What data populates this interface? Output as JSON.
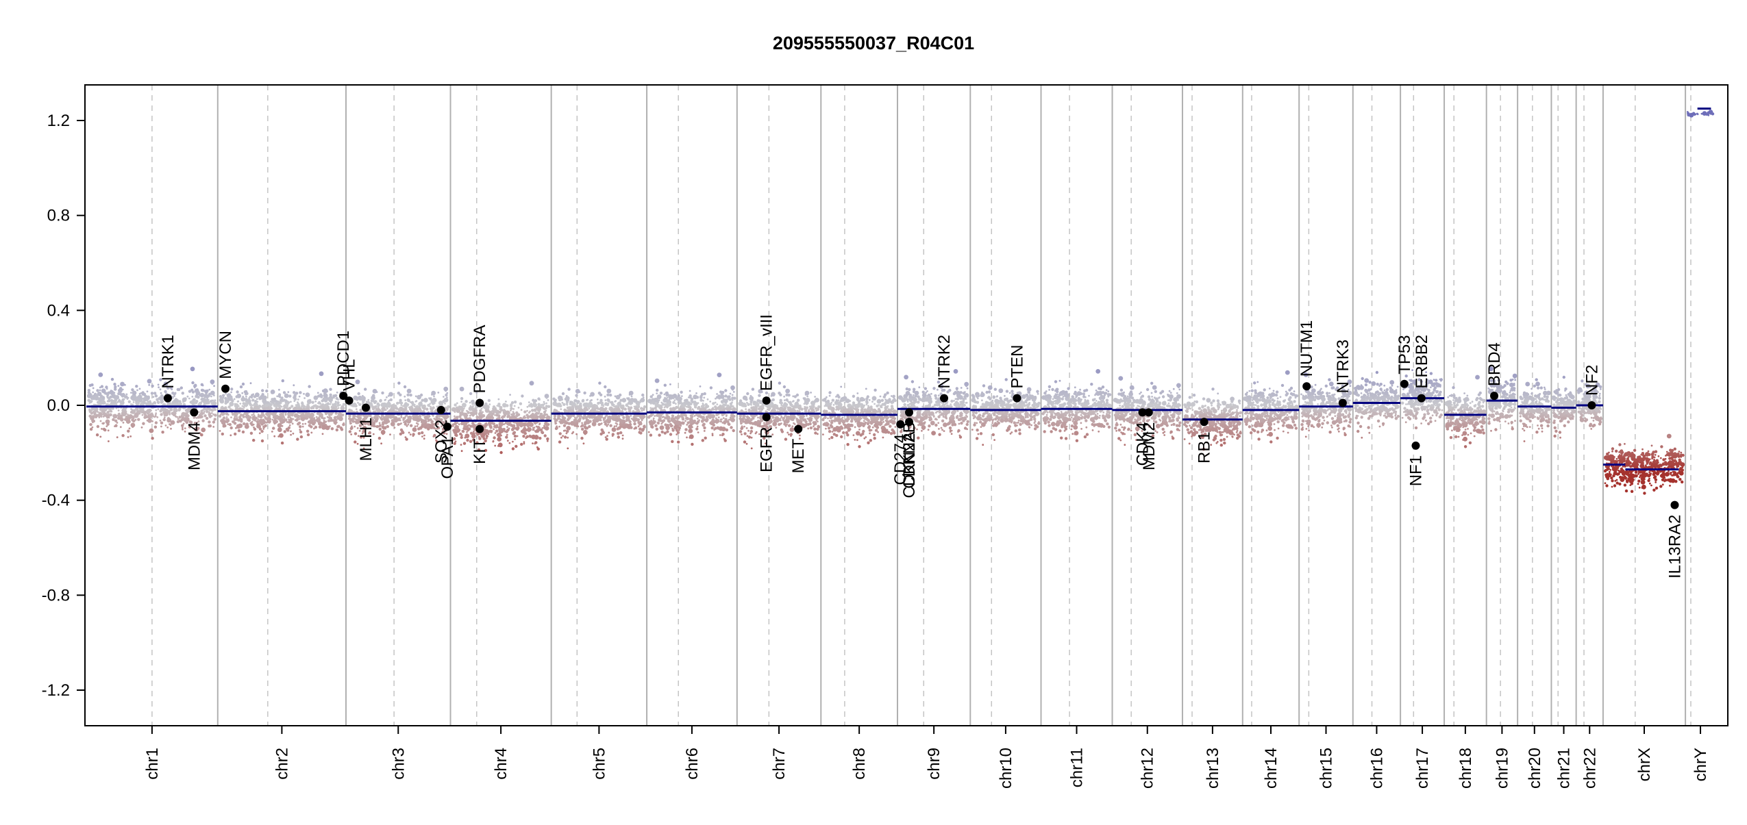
{
  "chart_data": {
    "type": "scatter",
    "title": "209555550037_R04C01",
    "ylim": [
      -1.35,
      1.35
    ],
    "yticks": [
      1.2,
      0.8,
      0.4,
      0.0,
      -0.4,
      -0.8,
      -1.2
    ],
    "ytick_labels": [
      "1.2",
      "0.8",
      "0.4",
      "0.0",
      "-0.4",
      "-0.8",
      "-1.2"
    ],
    "grid": false,
    "colors": {
      "segment": "#000080",
      "gain": "#7b7bbf",
      "loss": "#a52a2a",
      "neutral": "#c8c8c8"
    },
    "chromosomes": [
      {
        "name": "chr1",
        "size": 249,
        "centromere": 0.5,
        "level": -0.005
      },
      {
        "name": "chr2",
        "size": 243,
        "centromere": 0.39,
        "level": -0.025
      },
      {
        "name": "chr3",
        "size": 198,
        "centromere": 0.46,
        "level": -0.035
      },
      {
        "name": "chr4",
        "size": 191,
        "centromere": 0.26,
        "level": -0.065
      },
      {
        "name": "chr5",
        "size": 181,
        "centromere": 0.27,
        "level": -0.035
      },
      {
        "name": "chr6",
        "size": 171,
        "centromere": 0.35,
        "level": -0.03
      },
      {
        "name": "chr7",
        "size": 159,
        "centromere": 0.38,
        "level": -0.035
      },
      {
        "name": "chr8",
        "size": 145,
        "centromere": 0.31,
        "level": -0.04
      },
      {
        "name": "chr9",
        "size": 138,
        "centromere": 0.36,
        "level": -0.015
      },
      {
        "name": "chr10",
        "size": 134,
        "centromere": 0.3,
        "level": -0.02
      },
      {
        "name": "chr11",
        "size": 135,
        "centromere": 0.4,
        "level": -0.015
      },
      {
        "name": "chr12",
        "size": 133,
        "centromere": 0.27,
        "level": -0.02
      },
      {
        "name": "chr13",
        "size": 114,
        "centromere": 0.16,
        "level": -0.06
      },
      {
        "name": "chr14",
        "size": 107,
        "centromere": 0.16,
        "level": -0.02
      },
      {
        "name": "chr15",
        "size": 102,
        "centromere": 0.18,
        "level": -0.005
      },
      {
        "name": "chr16",
        "size": 90,
        "centromere": 0.4,
        "level": 0.01
      },
      {
        "name": "chr17",
        "size": 83,
        "centromere": 0.3,
        "level": 0.03
      },
      {
        "name": "chr18",
        "size": 80,
        "centromere": 0.23,
        "level": -0.04
      },
      {
        "name": "chr19",
        "size": 59,
        "centromere": 0.45,
        "level": 0.02
      },
      {
        "name": "chr20",
        "size": 64,
        "centromere": 0.44,
        "level": -0.005
      },
      {
        "name": "chr21",
        "size": 47,
        "centromere": 0.27,
        "level": -0.01
      },
      {
        "name": "chr22",
        "size": 51,
        "centromere": 0.29,
        "level": 0.0
      },
      {
        "name": "chrX",
        "size": 156,
        "centromere": 0.39,
        "level": -0.26
      },
      {
        "name": "chrY",
        "size": 57,
        "centromere": 0.18,
        "level": 1.23
      }
    ],
    "extra_segments": [
      {
        "chrom": "chrX",
        "start": 0.0,
        "end": 0.27,
        "level": -0.25
      },
      {
        "chrom": "chrX",
        "start": 0.27,
        "end": 0.92,
        "level": -0.27
      },
      {
        "chrom": "chrY",
        "start": 0.4,
        "end": 0.85,
        "level": 1.25
      }
    ],
    "genes": [
      {
        "name": "NTRK1",
        "chrom": "chr1",
        "pos": 0.62,
        "value": 0.03,
        "label_side": "above"
      },
      {
        "name": "MDM4",
        "chrom": "chr1",
        "pos": 0.82,
        "value": -0.03,
        "label_side": "below"
      },
      {
        "name": "MYCN",
        "chrom": "chr2",
        "pos": 0.06,
        "value": 0.07,
        "label_side": "above"
      },
      {
        "name": "PDCD1",
        "chrom": "chr2",
        "pos": 0.98,
        "value": 0.04,
        "label_side": "above"
      },
      {
        "name": "VHL",
        "chrom": "chr3",
        "pos": 0.03,
        "value": 0.02,
        "label_side": "above"
      },
      {
        "name": "MLH1",
        "chrom": "chr3",
        "pos": 0.19,
        "value": -0.01,
        "label_side": "below"
      },
      {
        "name": "SOX2",
        "chrom": "chr3",
        "pos": 0.91,
        "value": -0.02,
        "label_side": "below"
      },
      {
        "name": "OPA1",
        "chrom": "chr3",
        "pos": 0.97,
        "value": -0.09,
        "label_side": "below"
      },
      {
        "name": "PDGFRA",
        "chrom": "chr4",
        "pos": 0.29,
        "value": 0.01,
        "label_side": "above"
      },
      {
        "name": "KIT",
        "chrom": "chr4",
        "pos": 0.29,
        "value": -0.1,
        "label_side": "below"
      },
      {
        "name": "EGFR_vIII",
        "chrom": "chr7",
        "pos": 0.35,
        "value": 0.02,
        "label_side": "above"
      },
      {
        "name": "EGFR",
        "chrom": "chr7",
        "pos": 0.35,
        "value": -0.05,
        "label_side": "below"
      },
      {
        "name": "MET",
        "chrom": "chr7",
        "pos": 0.73,
        "value": -0.1,
        "label_side": "below"
      },
      {
        "name": "CD274",
        "chrom": "chr9",
        "pos": 0.04,
        "value": -0.08,
        "label_side": "below"
      },
      {
        "name": "CDKN2A",
        "chrom": "chr9",
        "pos": 0.16,
        "value": -0.07,
        "label_side": "below"
      },
      {
        "name": "CDKN2B",
        "chrom": "chr9",
        "pos": 0.16,
        "value": -0.03,
        "label_side": "below"
      },
      {
        "name": "NTRK2",
        "chrom": "chr9",
        "pos": 0.64,
        "value": 0.03,
        "label_side": "above"
      },
      {
        "name": "PTEN",
        "chrom": "chr10",
        "pos": 0.66,
        "value": 0.03,
        "label_side": "above"
      },
      {
        "name": "CDK4",
        "chrom": "chr12",
        "pos": 0.43,
        "value": -0.03,
        "label_side": "below"
      },
      {
        "name": "MDM2",
        "chrom": "chr12",
        "pos": 0.52,
        "value": -0.03,
        "label_side": "below"
      },
      {
        "name": "RB1",
        "chrom": "chr13",
        "pos": 0.36,
        "value": -0.07,
        "label_side": "below"
      },
      {
        "name": "NUTM1",
        "chrom": "chr15",
        "pos": 0.14,
        "value": 0.08,
        "label_side": "above"
      },
      {
        "name": "NTRK3",
        "chrom": "chr15",
        "pos": 0.81,
        "value": 0.01,
        "label_side": "above"
      },
      {
        "name": "TP53",
        "chrom": "chr17",
        "pos": 0.09,
        "value": 0.09,
        "label_side": "above"
      },
      {
        "name": "ERBB2",
        "chrom": "chr17",
        "pos": 0.48,
        "value": 0.03,
        "label_side": "above"
      },
      {
        "name": "NF1",
        "chrom": "chr17",
        "pos": 0.35,
        "value": -0.17,
        "label_side": "below"
      },
      {
        "name": "BRD4",
        "chrom": "chr19",
        "pos": 0.25,
        "value": 0.04,
        "label_side": "above"
      },
      {
        "name": "NF2",
        "chrom": "chr22",
        "pos": 0.58,
        "value": 0.0,
        "label_side": "above"
      },
      {
        "name": "IL13RA2",
        "chrom": "chrX",
        "pos": 0.87,
        "value": -0.42,
        "label_side": "below"
      }
    ]
  }
}
